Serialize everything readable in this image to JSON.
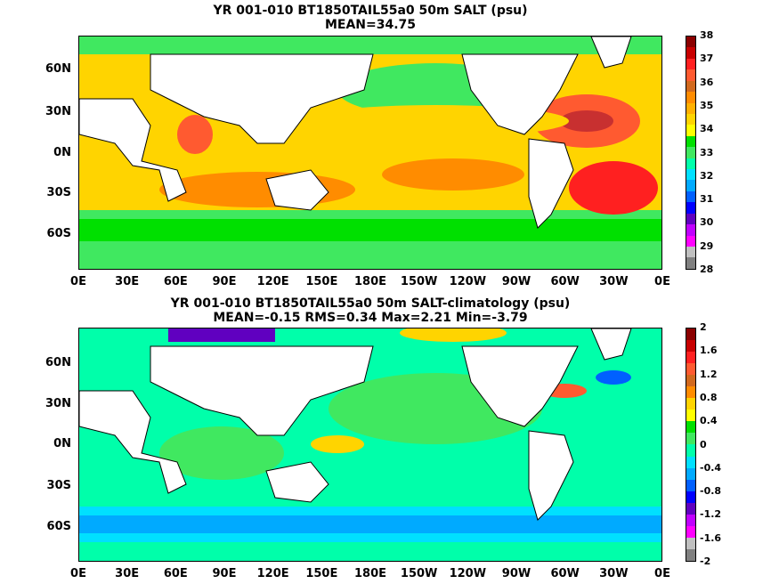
{
  "panel1": {
    "title": "YR 001-010 BT1850TAIL55a0 50m SALT (psu)",
    "subtitle": "MEAN=34.75",
    "colorbar": {
      "labels": [
        "38",
        "37",
        "36",
        "35",
        "34",
        "33",
        "32",
        "31",
        "30",
        "29",
        "28"
      ],
      "colors": [
        "#8b0000",
        "#c80000",
        "#ff2020",
        "#ff5a30",
        "#d2691e",
        "#ff8c00",
        "#ffb000",
        "#ffd400",
        "#ffff00",
        "#00e000",
        "#40e860",
        "#00ffaa",
        "#00e0ff",
        "#00aaff",
        "#0060ff",
        "#0000ff",
        "#6000c0",
        "#c000ff",
        "#ff00ff",
        "#c0c0c0",
        "#808080"
      ]
    },
    "ylabels": [
      "60N",
      "30N",
      "0N",
      "30S",
      "60S"
    ],
    "xlabels": [
      "0E",
      "30E",
      "60E",
      "90E",
      "120E",
      "150E",
      "180E",
      "150W",
      "120W",
      "90W",
      "60W",
      "30W",
      "0E"
    ]
  },
  "panel2": {
    "title": "YR 001-010 BT1850TAIL55a0 50m SALT-climatology (psu)",
    "subtitle": "MEAN=-0.15   RMS=0.34   Max=2.21   Min=-3.79",
    "colorbar": {
      "labels": [
        "2",
        "1.6",
        "1.2",
        "0.8",
        "0.4",
        "0",
        "-0.4",
        "-0.8",
        "-1.2",
        "-1.6",
        "-2"
      ],
      "colors": [
        "#8b0000",
        "#c80000",
        "#ff2020",
        "#ff5a30",
        "#d2691e",
        "#ff8c00",
        "#ffd400",
        "#ffff00",
        "#00e000",
        "#40e860",
        "#00ffaa",
        "#00e0ff",
        "#00aaff",
        "#0060ff",
        "#0000ff",
        "#6000c0",
        "#c000ff",
        "#ff00ff",
        "#c0c0c0",
        "#808080"
      ]
    },
    "ylabels": [
      "60N",
      "30N",
      "0N",
      "30S",
      "60S"
    ],
    "xlabels": [
      "0E",
      "30E",
      "60E",
      "90E",
      "120E",
      "150E",
      "180E",
      "150W",
      "120W",
      "90W",
      "60W",
      "30W",
      "0E"
    ]
  }
}
